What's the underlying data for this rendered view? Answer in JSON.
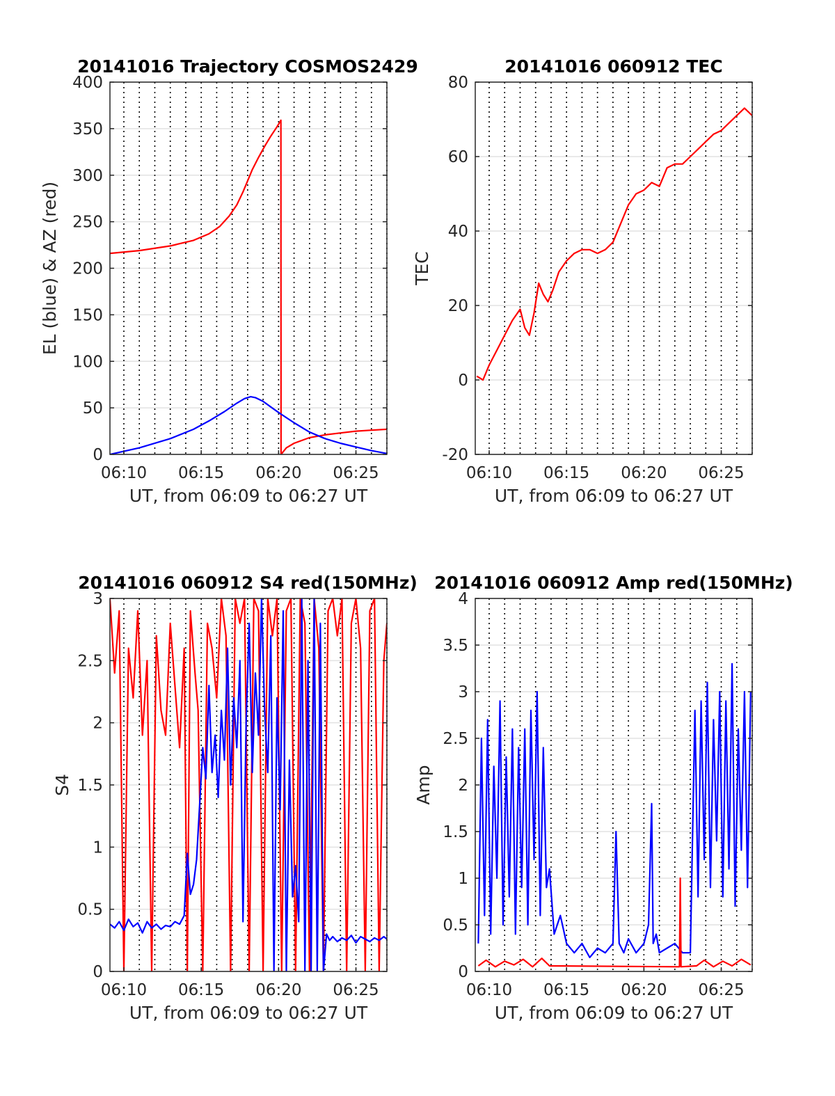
{
  "chart_data": [
    {
      "type": "line",
      "title": "20141016 Trajectory COSMOS2429",
      "xlabel": "UT, from 06:09 to 06:27 UT",
      "ylabel": "EL (blue) & AZ (red)",
      "xlim": [
        9.1,
        27.0
      ],
      "ylim": [
        0,
        400
      ],
      "xticks": [
        10,
        15,
        20,
        25
      ],
      "xtick_labels": [
        "06:10",
        "06:15",
        "06:20",
        "06:25"
      ],
      "yticks": [
        0,
        50,
        100,
        150,
        200,
        250,
        300,
        350,
        400
      ],
      "ytick_labels": [
        "0",
        "50",
        "100",
        "150",
        "200",
        "250",
        "300",
        "350",
        "400"
      ],
      "grid": true,
      "colors": {
        "EL": "#0000ff",
        "AZ": "#ff0000"
      },
      "series": [
        {
          "key": "AZ",
          "color": "#ff0000",
          "x": [
            9.1,
            11,
            13,
            14.5,
            15.5,
            16.2,
            16.8,
            17.3,
            17.7,
            18.0,
            18.3,
            18.7,
            19.1,
            19.5,
            19.9,
            20.15,
            20.16,
            20.5,
            21,
            22,
            23,
            24,
            25,
            26,
            27
          ],
          "y": [
            216,
            219,
            224,
            230,
            237,
            245,
            256,
            268,
            282,
            294,
            306,
            319,
            331,
            342,
            352,
            359,
            0,
            7,
            12,
            18,
            21,
            23,
            25,
            26,
            27
          ]
        },
        {
          "key": "EL",
          "color": "#0000ff",
          "x": [
            9.1,
            11,
            13,
            14.5,
            15.5,
            16.5,
            17.3,
            17.8,
            18.2,
            18.5,
            19.0,
            19.5,
            20,
            21,
            22,
            23,
            24,
            25,
            26,
            27
          ],
          "y": [
            0,
            7,
            17,
            27,
            36,
            46,
            55,
            60,
            62,
            61,
            57,
            51,
            45,
            34,
            24,
            17,
            12,
            8,
            4,
            1
          ]
        }
      ]
    },
    {
      "type": "line",
      "title": "20141016 060912 TEC",
      "xlabel": "UT, from 06:09 to 06:27 UT",
      "ylabel": "TEC",
      "xlim": [
        9.1,
        27.0
      ],
      "ylim": [
        -20,
        80
      ],
      "xticks": [
        10,
        15,
        20,
        25
      ],
      "xtick_labels": [
        "06:10",
        "06:15",
        "06:20",
        "06:25"
      ],
      "yticks": [
        -20,
        0,
        20,
        40,
        60,
        80
      ],
      "ytick_labels": [
        "-20",
        "0",
        "20",
        "40",
        "60",
        "80"
      ],
      "grid": true,
      "series": [
        {
          "color": "#ff0000",
          "x": [
            9.2,
            9.6,
            10.0,
            10.5,
            11.0,
            11.5,
            12.0,
            12.3,
            12.6,
            12.9,
            13.2,
            13.5,
            13.8,
            14.1,
            14.5,
            15.0,
            15.5,
            16.0,
            16.5,
            17.0,
            17.5,
            18.0,
            18.5,
            19.0,
            19.5,
            20.0,
            20.5,
            21.0,
            21.5,
            22.0,
            22.5,
            23.0,
            23.5,
            24.0,
            24.5,
            25.0,
            25.5,
            26.0,
            26.5,
            27.0
          ],
          "y": [
            1,
            0,
            4,
            8,
            12,
            16,
            19,
            14,
            12,
            18,
            26,
            23,
            21,
            24,
            29,
            32,
            34,
            35,
            35,
            34,
            35,
            37,
            42,
            47,
            50,
            51,
            53,
            52,
            57,
            58,
            58,
            60,
            62,
            64,
            66,
            67,
            69,
            71,
            73,
            71
          ]
        }
      ]
    },
    {
      "type": "line",
      "title": "20141016 060912 S4 red(150MHz)",
      "xlabel": "UT, from 06:09 to 06:27 UT",
      "ylabel": "S4",
      "xlim": [
        9.1,
        27.0
      ],
      "ylim": [
        0,
        3
      ],
      "xticks": [
        10,
        15,
        20,
        25
      ],
      "xtick_labels": [
        "06:10",
        "06:15",
        "06:20",
        "06:25"
      ],
      "yticks": [
        0,
        0.5,
        1,
        1.5,
        2,
        2.5,
        3
      ],
      "ytick_labels": [
        "0",
        "0.5",
        "1",
        "1.5",
        "2",
        "2.5",
        "3"
      ],
      "grid": true,
      "series": [
        {
          "color": "#ff0000",
          "x": [
            9.1,
            9.4,
            9.7,
            10.0,
            10.3,
            10.6,
            10.9,
            11.2,
            11.5,
            11.8,
            12.1,
            12.4,
            12.7,
            13.0,
            13.3,
            13.6,
            13.9,
            14.1,
            14.3,
            14.6,
            14.8,
            15.1,
            15.4,
            15.7,
            16.0,
            16.3,
            16.6,
            16.9,
            17.2,
            17.5,
            17.8,
            18.1,
            18.4,
            18.7,
            19.0,
            19.3,
            19.6,
            19.9,
            20.2,
            20.5,
            20.8,
            21.1,
            21.4,
            21.7,
            22.0,
            22.3,
            22.6,
            22.9,
            23.2,
            23.5,
            23.8,
            24.1,
            24.4,
            24.7,
            25.0,
            25.3,
            25.6,
            25.9,
            26.2,
            26.5,
            26.8,
            27.0
          ],
          "y": [
            3.0,
            2.4,
            2.9,
            0.0,
            2.6,
            2.2,
            2.9,
            1.9,
            2.5,
            0.0,
            2.7,
            2.1,
            1.9,
            2.8,
            2.3,
            1.8,
            2.6,
            0.0,
            2.9,
            2.4,
            2.1,
            0.0,
            2.8,
            2.6,
            2.2,
            3.0,
            2.7,
            0.0,
            3.0,
            2.8,
            3.0,
            0.0,
            3.0,
            2.9,
            0.0,
            3.0,
            2.7,
            3.0,
            0.0,
            2.9,
            3.0,
            0.0,
            3.0,
            2.8,
            0.0,
            3.0,
            2.6,
            0.0,
            2.9,
            3.0,
            2.7,
            3.0,
            0.0,
            2.8,
            3.0,
            2.6,
            0.0,
            2.9,
            3.0,
            0.0,
            2.5,
            2.8
          ]
        },
        {
          "color": "#0000ff",
          "x": [
            9.1,
            9.4,
            9.7,
            10.0,
            10.3,
            10.6,
            10.9,
            11.2,
            11.5,
            11.8,
            12.1,
            12.4,
            12.7,
            13.0,
            13.3,
            13.6,
            13.9,
            14.1,
            14.3,
            14.5,
            14.7,
            14.9,
            15.1,
            15.3,
            15.5,
            15.7,
            15.9,
            16.1,
            16.3,
            16.5,
            16.7,
            16.9,
            17.1,
            17.3,
            17.5,
            17.7,
            17.9,
            18.1,
            18.3,
            18.5,
            18.7,
            18.9,
            19.1,
            19.3,
            19.5,
            19.7,
            19.9,
            20.1,
            20.3,
            20.5,
            20.7,
            20.9,
            21.1,
            21.3,
            21.5,
            21.7,
            21.9,
            22.1,
            22.3,
            22.5,
            22.7,
            22.9,
            23.1,
            23.3,
            23.5,
            23.8,
            24.1,
            24.4,
            24.7,
            25.0,
            25.3,
            25.6,
            25.9,
            26.2,
            26.5,
            26.8,
            27.0
          ],
          "y": [
            0.38,
            0.35,
            0.4,
            0.33,
            0.42,
            0.36,
            0.39,
            0.31,
            0.4,
            0.35,
            0.38,
            0.34,
            0.37,
            0.36,
            0.4,
            0.38,
            0.45,
            0.95,
            0.62,
            0.7,
            0.9,
            1.35,
            1.8,
            1.55,
            2.3,
            1.6,
            1.9,
            1.4,
            2.1,
            1.7,
            2.6,
            1.5,
            2.2,
            1.8,
            2.5,
            0.4,
            2.0,
            2.8,
            1.6,
            2.4,
            1.9,
            3.0,
            2.1,
            1.6,
            2.7,
            0.0,
            2.2,
            1.3,
            2.9,
            0.0,
            1.7,
            0.6,
            0.85,
            0.4,
            3.0,
            0.0,
            2.5,
            0.0,
            3.0,
            0.0,
            2.8,
            0.0,
            0.3,
            0.25,
            0.28,
            0.24,
            0.27,
            0.25,
            0.29,
            0.23,
            0.28,
            0.26,
            0.24,
            0.27,
            0.25,
            0.28,
            0.26
          ]
        }
      ]
    },
    {
      "type": "line",
      "title": "20141016 060912 Amp red(150MHz)",
      "xlabel": "UT, from 06:09 to 06:27 UT",
      "ylabel": "Amp",
      "xlim": [
        9.1,
        27.0
      ],
      "ylim": [
        0,
        4
      ],
      "xticks": [
        10,
        15,
        20,
        25
      ],
      "xtick_labels": [
        "06:10",
        "06:15",
        "06:20",
        "06:25"
      ],
      "yticks": [
        0,
        0.5,
        1,
        1.5,
        2,
        2.5,
        3,
        3.5,
        4
      ],
      "ytick_labels": [
        "0",
        "0.5",
        "1",
        "1.5",
        "2",
        "2.5",
        "3",
        "3.5",
        "4"
      ],
      "grid": true,
      "series": [
        {
          "color": "#0000ff",
          "x": [
            9.3,
            9.5,
            9.7,
            9.9,
            10.1,
            10.3,
            10.5,
            10.7,
            10.9,
            11.1,
            11.3,
            11.5,
            11.7,
            11.9,
            12.1,
            12.3,
            12.5,
            12.7,
            12.9,
            13.1,
            13.3,
            13.5,
            13.7,
            13.9,
            14.2,
            14.6,
            15.0,
            15.5,
            16.0,
            16.5,
            17.0,
            17.5,
            18.0,
            18.2,
            18.4,
            18.7,
            19.0,
            19.5,
            20.0,
            20.3,
            20.5,
            20.6,
            20.8,
            21.0,
            21.5,
            22.0,
            22.5,
            23.0,
            23.3,
            23.5,
            23.7,
            23.9,
            24.1,
            24.3,
            24.5,
            24.7,
            24.9,
            25.1,
            25.3,
            25.5,
            25.7,
            25.9,
            26.1,
            26.3,
            26.5,
            26.7,
            26.9
          ],
          "y": [
            0.3,
            2.5,
            0.6,
            2.7,
            0.4,
            2.2,
            1.0,
            2.9,
            0.5,
            2.3,
            0.8,
            2.6,
            0.4,
            2.4,
            0.9,
            2.6,
            0.5,
            2.8,
            1.2,
            3.0,
            0.6,
            2.4,
            0.9,
            1.1,
            0.4,
            0.6,
            0.3,
            0.2,
            0.3,
            0.15,
            0.25,
            0.2,
            0.3,
            1.5,
            0.3,
            0.2,
            0.35,
            0.2,
            0.3,
            0.5,
            1.8,
            0.3,
            0.4,
            0.2,
            0.25,
            0.3,
            0.2,
            0.2,
            2.8,
            0.8,
            2.9,
            1.2,
            3.1,
            0.9,
            2.7,
            1.4,
            3.0,
            0.8,
            2.9,
            1.1,
            3.3,
            0.7,
            2.6,
            1.3,
            3.0,
            0.9,
            3.0
          ]
        },
        {
          "color": "#ff0000",
          "x": [
            9.3,
            9.8,
            10.4,
            11.0,
            11.6,
            12.2,
            12.8,
            13.4,
            13.9,
            22.3,
            22.35,
            22.4,
            23.4,
            23.9,
            24.5,
            25.1,
            25.7,
            26.3,
            26.9
          ],
          "y": [
            0.06,
            0.12,
            0.05,
            0.11,
            0.07,
            0.13,
            0.05,
            0.14,
            0.06,
            0.05,
            1.0,
            0.05,
            0.06,
            0.12,
            0.05,
            0.11,
            0.06,
            0.13,
            0.07
          ]
        }
      ]
    }
  ]
}
